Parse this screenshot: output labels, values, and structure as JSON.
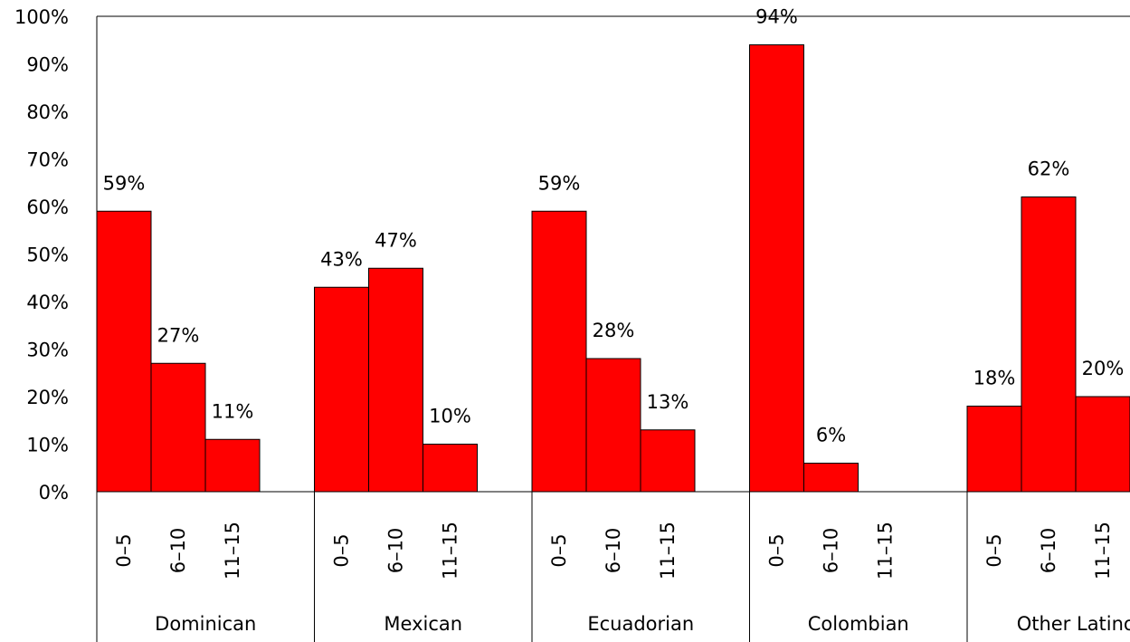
{
  "chart_data": {
    "type": "bar",
    "title": "",
    "xlabel": "",
    "ylabel": "",
    "ylim": [
      0,
      100
    ],
    "y_ticks": [
      "0%",
      "10%",
      "20%",
      "30%",
      "40%",
      "50%",
      "60%",
      "70%",
      "80%",
      "90%",
      "100%"
    ],
    "y_tick_values": [
      0,
      10,
      20,
      30,
      40,
      50,
      60,
      70,
      80,
      90,
      100
    ],
    "bar_color": "#ff0000",
    "grid": false,
    "legend": "none",
    "subcategories": [
      "0–5",
      "6–10",
      "11–15"
    ],
    "groups": [
      {
        "name": "Dominican",
        "values": [
          59,
          27,
          11
        ],
        "labels": [
          "59%",
          "27%",
          "11%"
        ]
      },
      {
        "name": "Mexican",
        "values": [
          43,
          47,
          10
        ],
        "labels": [
          "43%",
          "47%",
          "10%"
        ]
      },
      {
        "name": "Ecuadorian",
        "values": [
          59,
          28,
          13
        ],
        "labels": [
          "59%",
          "28%",
          "13%"
        ]
      },
      {
        "name": "Colombian",
        "values": [
          94,
          6,
          0
        ],
        "labels": [
          "94%",
          "6%",
          ""
        ]
      },
      {
        "name": "Other Latino",
        "values": [
          18,
          62,
          20
        ],
        "labels": [
          "18%",
          "62%",
          "20%"
        ]
      }
    ]
  }
}
